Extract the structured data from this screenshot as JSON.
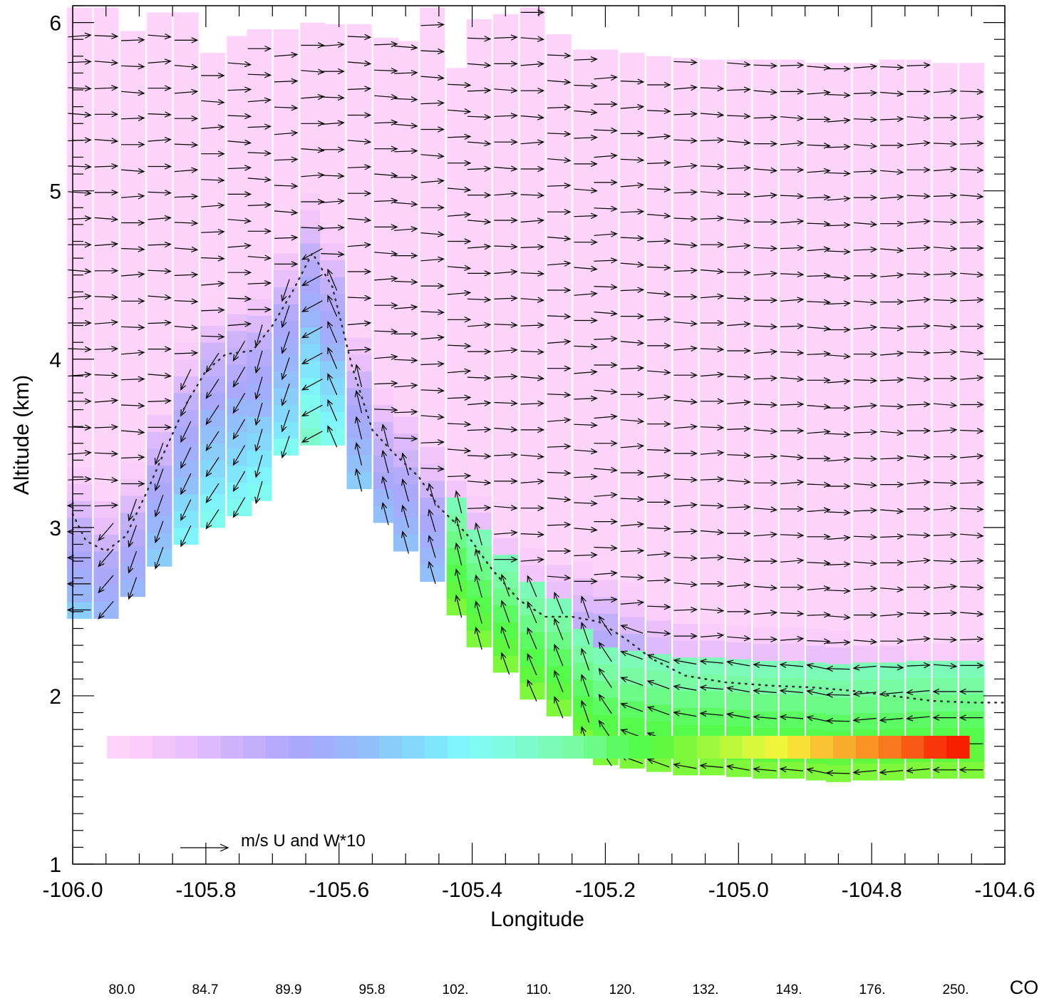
{
  "chart_data": {
    "type": "heatmap",
    "subtype": "vertical cross-section with wind vectors",
    "xlabel": "Longitude",
    "ylabel": "Altitude (km)",
    "xlim": [
      -106.0,
      -104.6
    ],
    "ylim": [
      1.0,
      6.1
    ],
    "x_ticks": [
      "-106.0",
      "-105.8",
      "-105.6",
      "-105.4",
      "-105.2",
      "-105.0",
      "-104.8",
      "-104.6"
    ],
    "y_ticks": [
      "1",
      "2",
      "3",
      "4",
      "5",
      "6"
    ],
    "x_tick_values": [
      -106.0,
      -105.8,
      -105.6,
      -105.4,
      -105.2,
      -105.0,
      -104.8,
      -104.6
    ],
    "y_tick_values": [
      1,
      2,
      3,
      4,
      5,
      6
    ],
    "grid": false,
    "vector_reference_label": "m/s  U and W*10",
    "colorbar": {
      "title": "CO",
      "tick_labels": [
        "80.0",
        "84.7",
        "89.9",
        "95.8",
        "102.",
        "110.",
        "120.",
        "132.",
        "149.",
        "176.",
        "250."
      ],
      "colors": [
        "#ffd4fb",
        "#fbcdfb",
        "#f3c6fb",
        "#e9c0fb",
        "#ddbafb",
        "#d0b4fb",
        "#c3b0fb",
        "#b6abfb",
        "#aaa8fb",
        "#a2aefb",
        "#9ab6fb",
        "#92c0fb",
        "#8acdfb",
        "#84d8fb",
        "#80e6fb",
        "#80f4fb",
        "#80fbf0",
        "#7ffbdf",
        "#7efbcd",
        "#7cfbb8",
        "#78fba2",
        "#6bfb86",
        "#5cfb64",
        "#55fb4b",
        "#5ff83e",
        "#7ef83a",
        "#9bf83a",
        "#bdf83b",
        "#d8f83b",
        "#eef43a",
        "#f8e037",
        "#f8c432",
        "#f8ac2b",
        "#f89324",
        "#f8781e",
        "#f85a16",
        "#f8380c",
        "#f81f00"
      ]
    },
    "terrain_km": [
      {
        "lon": -105.99,
        "alt": 2.46
      },
      {
        "lon": -105.95,
        "alt": 2.46
      },
      {
        "lon": -105.91,
        "alt": 2.59
      },
      {
        "lon": -105.87,
        "alt": 2.77
      },
      {
        "lon": -105.83,
        "alt": 2.9
      },
      {
        "lon": -105.79,
        "alt": 3.0
      },
      {
        "lon": -105.75,
        "alt": 3.07
      },
      {
        "lon": -105.72,
        "alt": 3.16
      },
      {
        "lon": -105.68,
        "alt": 3.43
      },
      {
        "lon": -105.64,
        "alt": 3.49
      },
      {
        "lon": -105.61,
        "alt": 3.49
      },
      {
        "lon": -105.57,
        "alt": 3.23
      },
      {
        "lon": -105.53,
        "alt": 3.03
      },
      {
        "lon": -105.5,
        "alt": 2.86
      },
      {
        "lon": -105.46,
        "alt": 2.68
      },
      {
        "lon": -105.42,
        "alt": 2.48
      },
      {
        "lon": -105.39,
        "alt": 2.29
      },
      {
        "lon": -105.35,
        "alt": 2.14
      },
      {
        "lon": -105.31,
        "alt": 1.98
      },
      {
        "lon": -105.27,
        "alt": 1.88
      },
      {
        "lon": -105.23,
        "alt": 1.7
      },
      {
        "lon": -105.2,
        "alt": 1.59
      },
      {
        "lon": -105.16,
        "alt": 1.57
      },
      {
        "lon": -105.12,
        "alt": 1.55
      },
      {
        "lon": -105.08,
        "alt": 1.53
      },
      {
        "lon": -105.04,
        "alt": 1.53
      },
      {
        "lon": -105.0,
        "alt": 1.52
      },
      {
        "lon": -104.96,
        "alt": 1.51
      },
      {
        "lon": -104.92,
        "alt": 1.51
      },
      {
        "lon": -104.88,
        "alt": 1.5
      },
      {
        "lon": -104.85,
        "alt": 1.49
      },
      {
        "lon": -104.81,
        "alt": 1.5
      },
      {
        "lon": -104.77,
        "alt": 1.5
      },
      {
        "lon": -104.73,
        "alt": 1.51
      },
      {
        "lon": -104.69,
        "alt": 1.51
      },
      {
        "lon": -104.65,
        "alt": 1.51
      }
    ],
    "top_km": [
      {
        "lon": -105.99,
        "alt": 6.09
      },
      {
        "lon": -105.95,
        "alt": 6.09
      },
      {
        "lon": -105.91,
        "alt": 5.95
      },
      {
        "lon": -105.87,
        "alt": 6.06
      },
      {
        "lon": -105.83,
        "alt": 6.06
      },
      {
        "lon": -105.79,
        "alt": 5.82
      },
      {
        "lon": -105.75,
        "alt": 5.92
      },
      {
        "lon": -105.72,
        "alt": 5.96
      },
      {
        "lon": -105.68,
        "alt": 5.96
      },
      {
        "lon": -105.64,
        "alt": 6.0
      },
      {
        "lon": -105.61,
        "alt": 5.99
      },
      {
        "lon": -105.57,
        "alt": 5.99
      },
      {
        "lon": -105.53,
        "alt": 5.91
      },
      {
        "lon": -105.5,
        "alt": 5.89
      },
      {
        "lon": -105.46,
        "alt": 6.09
      },
      {
        "lon": -105.42,
        "alt": 5.73
      },
      {
        "lon": -105.39,
        "alt": 6.02
      },
      {
        "lon": -105.35,
        "alt": 6.05
      },
      {
        "lon": -105.31,
        "alt": 6.09
      },
      {
        "lon": -105.27,
        "alt": 5.93
      },
      {
        "lon": -105.23,
        "alt": 5.84
      },
      {
        "lon": -105.2,
        "alt": 5.84
      },
      {
        "lon": -105.16,
        "alt": 5.82
      },
      {
        "lon": -105.12,
        "alt": 5.8
      },
      {
        "lon": -105.08,
        "alt": 5.79
      },
      {
        "lon": -105.04,
        "alt": 5.78
      },
      {
        "lon": -105.0,
        "alt": 5.78
      },
      {
        "lon": -104.96,
        "alt": 5.78
      },
      {
        "lon": -104.92,
        "alt": 5.78
      },
      {
        "lon": -104.88,
        "alt": 5.76
      },
      {
        "lon": -104.85,
        "alt": 5.76
      },
      {
        "lon": -104.81,
        "alt": 5.76
      },
      {
        "lon": -104.77,
        "alt": 5.78
      },
      {
        "lon": -104.73,
        "alt": 5.78
      },
      {
        "lon": -104.69,
        "alt": 5.76
      },
      {
        "lon": -104.65,
        "alt": 5.76
      }
    ],
    "boundary_layer_top_km": [
      {
        "lon": -106.0,
        "alt": 3.08
      },
      {
        "lon": -105.98,
        "alt": 2.92
      },
      {
        "lon": -105.95,
        "alt": 2.86
      },
      {
        "lon": -105.92,
        "alt": 2.95
      },
      {
        "lon": -105.89,
        "alt": 3.2
      },
      {
        "lon": -105.86,
        "alt": 3.47
      },
      {
        "lon": -105.83,
        "alt": 3.73
      },
      {
        "lon": -105.8,
        "alt": 3.93
      },
      {
        "lon": -105.77,
        "alt": 4.03
      },
      {
        "lon": -105.73,
        "alt": 4.05
      },
      {
        "lon": -105.7,
        "alt": 4.2
      },
      {
        "lon": -105.67,
        "alt": 4.4
      },
      {
        "lon": -105.64,
        "alt": 4.63
      },
      {
        "lon": -105.61,
        "alt": 4.43
      },
      {
        "lon": -105.58,
        "alt": 3.95
      },
      {
        "lon": -105.55,
        "alt": 3.58
      },
      {
        "lon": -105.52,
        "alt": 3.45
      },
      {
        "lon": -105.48,
        "alt": 3.3
      },
      {
        "lon": -105.45,
        "alt": 3.12
      },
      {
        "lon": -105.41,
        "alt": 2.97
      },
      {
        "lon": -105.37,
        "alt": 2.75
      },
      {
        "lon": -105.33,
        "alt": 2.57
      },
      {
        "lon": -105.29,
        "alt": 2.47
      },
      {
        "lon": -105.25,
        "alt": 2.47
      },
      {
        "lon": -105.21,
        "alt": 2.44
      },
      {
        "lon": -105.17,
        "alt": 2.34
      },
      {
        "lon": -105.13,
        "alt": 2.22
      },
      {
        "lon": -105.08,
        "alt": 2.12
      },
      {
        "lon": -105.02,
        "alt": 2.08
      },
      {
        "lon": -104.95,
        "alt": 2.06
      },
      {
        "lon": -104.89,
        "alt": 2.05
      },
      {
        "lon": -104.83,
        "alt": 2.03
      },
      {
        "lon": -104.77,
        "alt": 2.0
      },
      {
        "lon": -104.71,
        "alt": 1.97
      },
      {
        "lon": -104.65,
        "alt": 1.96
      },
      {
        "lon": -104.6,
        "alt": 1.96
      }
    ]
  }
}
